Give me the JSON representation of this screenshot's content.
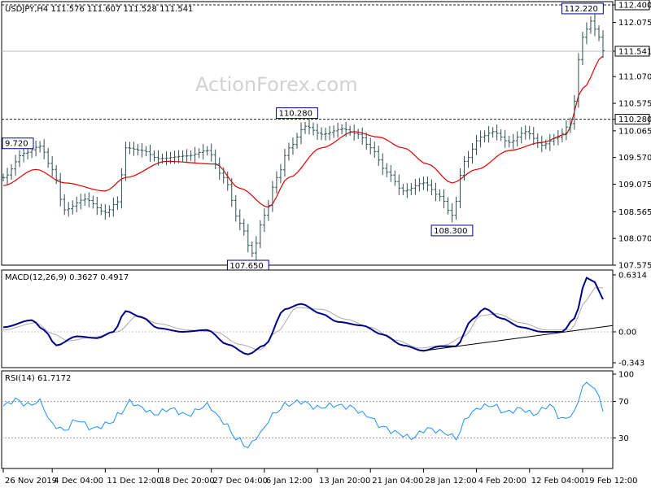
{
  "colors": {
    "candles": "#2f4f4f",
    "ma": "#e00000",
    "macd": "#00008b",
    "signal": "#aaaaaa",
    "rsi": "#1e90ff",
    "level_line": "#222222",
    "grid": "#000000"
  },
  "header": {
    "title": "USDJPY,H4  111.576 111.607 111.528 111.541",
    "watermark": "ActionForex.com"
  },
  "chart_data": [
    {
      "type": "candlestick",
      "panel": "price",
      "symbol": "USDJPY",
      "timeframe": "H4",
      "ohlc_last": {
        "open": 111.576,
        "high": 111.607,
        "low": 111.528,
        "close": 111.541
      },
      "ylim": [
        107.575,
        112.4
      ],
      "y_ticks": [
        "112.400",
        "112.075",
        "111.541",
        "111.070",
        "110.575",
        "110.280",
        "110.065",
        "109.570",
        "109.075",
        "108.565",
        "108.070",
        "107.575"
      ],
      "current_price_label": "111.541",
      "horizontal_levels": [
        {
          "value": 112.4,
          "label": "112.400"
        },
        {
          "value": 110.28,
          "label": "110.280"
        }
      ],
      "annotations": [
        {
          "label": "9.720",
          "x_index": 2,
          "value": 109.72
        },
        {
          "label": "107.650",
          "x_index": 60,
          "value": 107.65
        },
        {
          "label": "110.280",
          "x_index": 72,
          "value": 110.28
        },
        {
          "label": "108.300",
          "x_index": 110,
          "value": 108.3
        },
        {
          "label": "112.220",
          "x_index": 142,
          "value": 112.22
        }
      ],
      "close_anchors": [
        [
          0,
          109.2
        ],
        [
          5,
          109.65
        ],
        [
          9,
          109.78
        ],
        [
          12,
          109.35
        ],
        [
          15,
          108.6
        ],
        [
          20,
          108.8
        ],
        [
          25,
          108.55
        ],
        [
          28,
          108.75
        ],
        [
          30,
          109.75
        ],
        [
          34,
          109.7
        ],
        [
          38,
          109.55
        ],
        [
          45,
          109.6
        ],
        [
          50,
          109.7
        ],
        [
          54,
          109.2
        ],
        [
          58,
          108.35
        ],
        [
          61,
          107.8
        ],
        [
          64,
          108.5
        ],
        [
          67,
          109.2
        ],
        [
          70,
          109.75
        ],
        [
          74,
          110.15
        ],
        [
          78,
          110.0
        ],
        [
          83,
          110.1
        ],
        [
          87,
          110.0
        ],
        [
          90,
          109.75
        ],
        [
          94,
          109.3
        ],
        [
          98,
          108.95
        ],
        [
          103,
          109.1
        ],
        [
          107,
          108.85
        ],
        [
          110,
          108.5
        ],
        [
          113,
          109.5
        ],
        [
          117,
          109.95
        ],
        [
          120,
          110.05
        ],
        [
          124,
          109.85
        ],
        [
          128,
          110.05
        ],
        [
          132,
          109.8
        ],
        [
          136,
          109.95
        ],
        [
          139,
          110.2
        ],
        [
          142,
          111.8
        ],
        [
          144,
          112.1
        ],
        [
          146,
          111.8
        ],
        [
          147,
          111.55
        ]
      ],
      "ma_anchors": [
        [
          0,
          109.05
        ],
        [
          8,
          109.35
        ],
        [
          15,
          109.1
        ],
        [
          25,
          108.95
        ],
        [
          30,
          109.2
        ],
        [
          40,
          109.5
        ],
        [
          52,
          109.45
        ],
        [
          58,
          109.0
        ],
        [
          65,
          108.65
        ],
        [
          70,
          109.2
        ],
        [
          78,
          109.75
        ],
        [
          86,
          110.05
        ],
        [
          92,
          109.95
        ],
        [
          98,
          109.75
        ],
        [
          104,
          109.45
        ],
        [
          110,
          109.1
        ],
        [
          116,
          109.35
        ],
        [
          124,
          109.7
        ],
        [
          132,
          109.85
        ],
        [
          138,
          110.0
        ],
        [
          142,
          110.85
        ],
        [
          147,
          111.45
        ]
      ],
      "x_ticks": [
        {
          "label": "26 Nov 2019",
          "index": 0
        },
        {
          "label": "4 Dec 04:00",
          "index": 12
        },
        {
          "label": "11 Dec 12:00",
          "index": 25
        },
        {
          "label": "18 Dec 20:00",
          "index": 38
        },
        {
          "label": "27 Dec 04:00",
          "index": 51
        },
        {
          "label": "6 Jan 12:00",
          "index": 64
        },
        {
          "label": "13 Jan 20:00",
          "index": 77
        },
        {
          "label": "21 Jan 04:00",
          "index": 90
        },
        {
          "label": "28 Jan 12:00",
          "index": 103
        },
        {
          "label": "4 Feb 20:00",
          "index": 116
        },
        {
          "label": "12 Feb 04:00",
          "index": 129
        },
        {
          "label": "19 Feb 12:00",
          "index": 142
        }
      ],
      "bar_count": 148
    },
    {
      "type": "line",
      "panel": "macd",
      "title": "MACD(12,26,9) 0.3627 0.4917",
      "ylim": [
        -0.343,
        0.6314
      ],
      "y_ticks": [
        "0.6314",
        "0.00",
        "-0.343"
      ],
      "macd_anchors": [
        [
          0,
          0.05
        ],
        [
          7,
          0.13
        ],
        [
          10,
          0.02
        ],
        [
          13,
          -0.15
        ],
        [
          18,
          -0.05
        ],
        [
          23,
          -0.07
        ],
        [
          27,
          0.0
        ],
        [
          30,
          0.23
        ],
        [
          34,
          0.16
        ],
        [
          38,
          0.04
        ],
        [
          44,
          0.0
        ],
        [
          50,
          0.02
        ],
        [
          55,
          -0.14
        ],
        [
          60,
          -0.25
        ],
        [
          64,
          -0.15
        ],
        [
          69,
          0.25
        ],
        [
          73,
          0.31
        ],
        [
          78,
          0.2
        ],
        [
          82,
          0.11
        ],
        [
          88,
          0.07
        ],
        [
          93,
          -0.03
        ],
        [
          98,
          -0.15
        ],
        [
          103,
          -0.21
        ],
        [
          107,
          -0.16
        ],
        [
          111,
          -0.16
        ],
        [
          115,
          0.14
        ],
        [
          118,
          0.26
        ],
        [
          122,
          0.15
        ],
        [
          127,
          0.05
        ],
        [
          132,
          0.0
        ],
        [
          137,
          0.0
        ],
        [
          140,
          0.15
        ],
        [
          143,
          0.6
        ],
        [
          145,
          0.55
        ],
        [
          147,
          0.36
        ]
      ],
      "signal_anchors": [
        [
          0,
          0.02
        ],
        [
          8,
          0.1
        ],
        [
          12,
          -0.02
        ],
        [
          16,
          -0.1
        ],
        [
          22,
          -0.06
        ],
        [
          28,
          0.0
        ],
        [
          33,
          0.18
        ],
        [
          38,
          0.09
        ],
        [
          45,
          0.02
        ],
        [
          52,
          0.0
        ],
        [
          58,
          -0.14
        ],
        [
          63,
          -0.2
        ],
        [
          67,
          0.0
        ],
        [
          72,
          0.27
        ],
        [
          78,
          0.25
        ],
        [
          84,
          0.14
        ],
        [
          90,
          0.05
        ],
        [
          96,
          -0.09
        ],
        [
          102,
          -0.18
        ],
        [
          108,
          -0.15
        ],
        [
          113,
          -0.05
        ],
        [
          117,
          0.18
        ],
        [
          121,
          0.2
        ],
        [
          127,
          0.1
        ],
        [
          133,
          0.02
        ],
        [
          139,
          0.02
        ],
        [
          143,
          0.35
        ],
        [
          145,
          0.49
        ],
        [
          147,
          0.49
        ]
      ],
      "trendline": {
        "from": [
          103,
          -0.21
        ],
        "to": [
          148,
          0.07
        ]
      }
    },
    {
      "type": "line",
      "panel": "rsi",
      "title": "RSI(14) 61.7172",
      "ylim": [
        0,
        100
      ],
      "y_ticks": [
        "100",
        "70",
        "30"
      ],
      "levels": [
        70,
        30
      ],
      "rsi_anchors": [
        [
          0,
          65
        ],
        [
          3,
          72
        ],
        [
          6,
          66
        ],
        [
          9,
          70
        ],
        [
          12,
          45
        ],
        [
          15,
          38
        ],
        [
          18,
          50
        ],
        [
          22,
          40
        ],
        [
          26,
          46
        ],
        [
          29,
          58
        ],
        [
          31,
          70
        ],
        [
          34,
          63
        ],
        [
          37,
          56
        ],
        [
          41,
          62
        ],
        [
          45,
          55
        ],
        [
          50,
          66
        ],
        [
          54,
          48
        ],
        [
          57,
          30
        ],
        [
          60,
          20
        ],
        [
          63,
          35
        ],
        [
          66,
          55
        ],
        [
          69,
          66
        ],
        [
          73,
          70
        ],
        [
          77,
          63
        ],
        [
          81,
          66
        ],
        [
          85,
          64
        ],
        [
          89,
          55
        ],
        [
          93,
          42
        ],
        [
          96,
          36
        ],
        [
          100,
          30
        ],
        [
          104,
          40
        ],
        [
          108,
          36
        ],
        [
          111,
          30
        ],
        [
          114,
          55
        ],
        [
          117,
          64
        ],
        [
          120,
          66
        ],
        [
          123,
          58
        ],
        [
          127,
          62
        ],
        [
          130,
          56
        ],
        [
          134,
          66
        ],
        [
          137,
          50
        ],
        [
          140,
          57
        ],
        [
          142,
          87
        ],
        [
          144,
          90
        ],
        [
          146,
          75
        ],
        [
          147,
          62
        ]
      ]
    }
  ]
}
